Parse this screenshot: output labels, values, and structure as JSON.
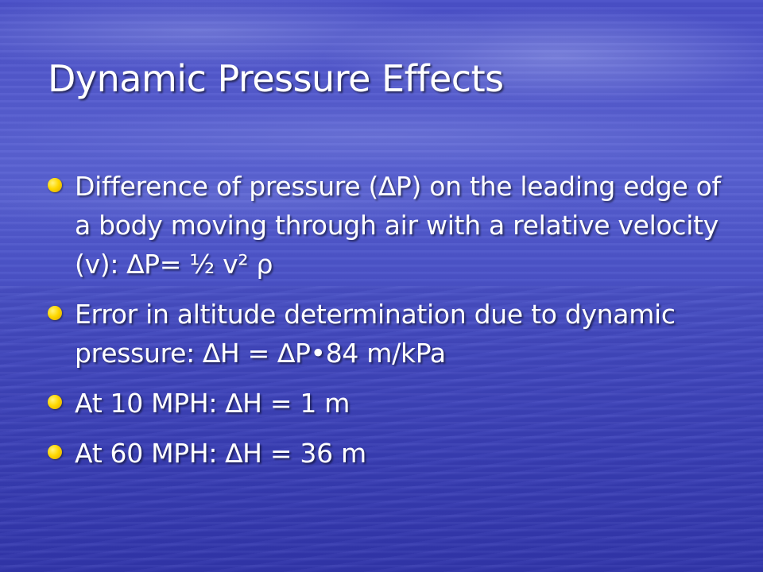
{
  "slide": {
    "title": "Dynamic Pressure Effects",
    "bullets": [
      {
        "text": "Difference of pressure (∆P) on the leading edge of a body moving through air with a relative velocity (v):    ∆P= ½ v² ρ"
      },
      {
        "text": "Error in altitude determination due to dynamic pressure: ∆H = ∆P•84 m/kPa"
      },
      {
        "text": "At 10 MPH: ∆H = 1 m"
      },
      {
        "text": "At 60 MPH: ∆H = 36 m"
      }
    ]
  },
  "colors": {
    "title_text": "#ffffff",
    "body_text": "#ffffff",
    "bullet": "#ffd800",
    "background": "#4a50c8"
  }
}
